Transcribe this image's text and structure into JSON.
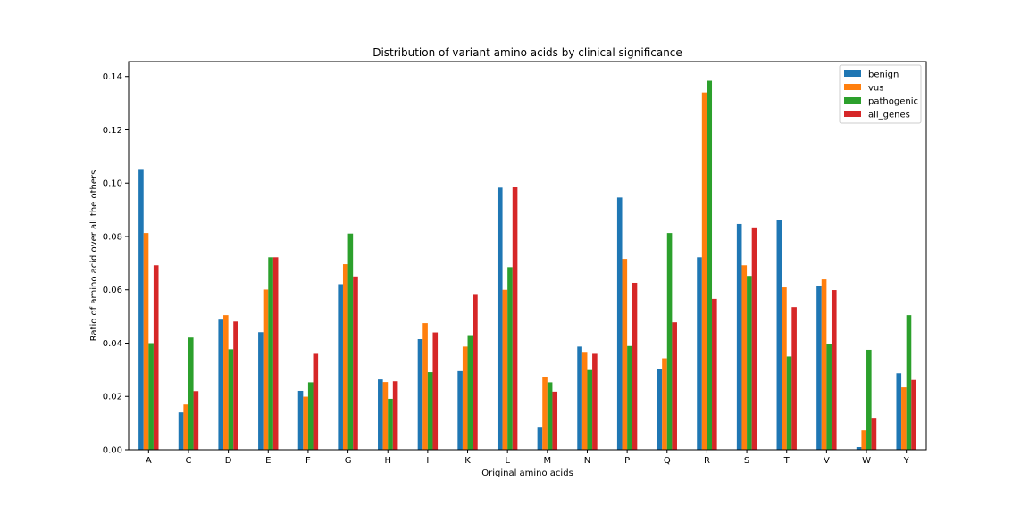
{
  "chart_data": {
    "type": "bar",
    "title": "Distribution of variant amino acids by clinical significance",
    "xlabel": "Original amino acids",
    "ylabel": "Ratio of amino acid over all the others",
    "ylim": [
      0,
      0.1456
    ],
    "yticks": [
      "0.00",
      "0.02",
      "0.04",
      "0.06",
      "0.08",
      "0.10",
      "0.12",
      "0.14"
    ],
    "ytick_values": [
      0,
      0.02,
      0.04,
      0.06,
      0.08,
      0.1,
      0.12,
      0.14
    ],
    "grid": false,
    "legend_position": "top-right",
    "categories": [
      "A",
      "C",
      "D",
      "E",
      "F",
      "G",
      "H",
      "I",
      "K",
      "L",
      "M",
      "N",
      "P",
      "Q",
      "R",
      "S",
      "T",
      "V",
      "W",
      "Y"
    ],
    "series": [
      {
        "name": "benign",
        "color": "#1f77b4",
        "values": [
          0.1053,
          0.014,
          0.0488,
          0.0441,
          0.0221,
          0.0621,
          0.0264,
          0.0415,
          0.0295,
          0.0983,
          0.0083,
          0.0387,
          0.0946,
          0.0304,
          0.0722,
          0.0847,
          0.0862,
          0.0613,
          0.001,
          0.0287
        ]
      },
      {
        "name": "vus",
        "color": "#ff7f0e",
        "values": [
          0.0813,
          0.017,
          0.0505,
          0.0601,
          0.0199,
          0.0696,
          0.0254,
          0.0475,
          0.0387,
          0.06,
          0.0274,
          0.0364,
          0.0716,
          0.0343,
          0.134,
          0.0692,
          0.0609,
          0.0639,
          0.0073,
          0.0234
        ]
      },
      {
        "name": "pathogenic",
        "color": "#2ca02c",
        "values": [
          0.04,
          0.0421,
          0.0377,
          0.0722,
          0.0253,
          0.0811,
          0.0191,
          0.0291,
          0.043,
          0.0685,
          0.0253,
          0.0299,
          0.0389,
          0.0813,
          0.1384,
          0.0652,
          0.035,
          0.0395,
          0.0375,
          0.0505
        ]
      },
      {
        "name": "all_genes",
        "color": "#d62728",
        "values": [
          0.0692,
          0.022,
          0.0481,
          0.0722,
          0.036,
          0.065,
          0.0257,
          0.044,
          0.0581,
          0.0987,
          0.0218,
          0.036,
          0.0626,
          0.0478,
          0.0566,
          0.0834,
          0.0535,
          0.0599,
          0.012,
          0.0262
        ]
      }
    ]
  }
}
